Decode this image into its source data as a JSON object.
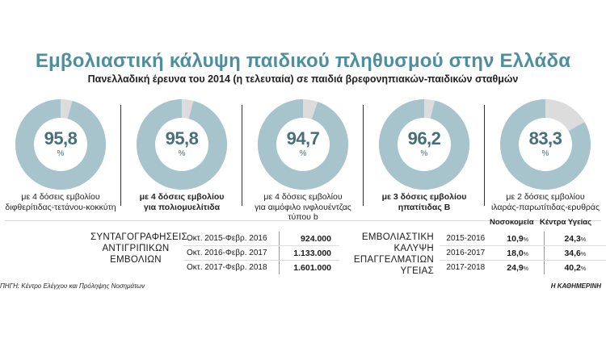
{
  "title": "Εμβολιαστική κάλυψη παιδικού πληθυσμού στην Ελλάδα",
  "subtitle": "Πανελλαδική έρευνα του 2014 (η τελευταία) σε παιδιά βρεφονηπιακών-παιδικών σταθμών",
  "colors": {
    "filled": "#a7c3cb",
    "empty": "#dcdcdc",
    "title": "#4f8f9c"
  },
  "chart_data": [
    {
      "type": "pie",
      "unit": "%",
      "items": [
        {
          "label": "95,8",
          "value": 95.8,
          "caption_lines": [
            "με 4 δόσεις εμβολίου",
            "διφθερίτιδας-τετάνου-κοκκύτη"
          ],
          "bold": false
        },
        {
          "label": "95,8",
          "value": 95.8,
          "caption_lines": [
            "με 4 δόσεις εμβολίου",
            "για πολιομυελίτιδα"
          ],
          "bold": true
        },
        {
          "label": "94,7",
          "value": 94.7,
          "caption_lines": [
            "με 4 δόσεις εμβολίου",
            "για αιμόφιλο ινφλουέντζας τύπου b"
          ],
          "bold": false
        },
        {
          "label": "96,2",
          "value": 96.2,
          "caption_lines": [
            "με 3 δόσεις εμβολίου",
            "ηπατίτιδας Β"
          ],
          "bold": true
        },
        {
          "label": "83,3",
          "value": 83.3,
          "caption_lines": [
            "με 2 δόσεις εμβολίου",
            "ιλαράς-παρωτίτιδας-ερυθράς"
          ],
          "bold": false
        }
      ]
    },
    {
      "type": "table",
      "title_lines": [
        "ΣΥΝΤΑΓΟΓΡΑΦΗΣΕΙΣ",
        "ΑΝΤΙΓΡΙΠΙΚΩΝ",
        "ΕΜΒΟΛΙΩΝ"
      ],
      "rows": [
        {
          "period": "Οκτ. 2015-Φεβρ. 2016",
          "value": "924.000"
        },
        {
          "period": "Οκτ. 2016-Φεβρ. 2017",
          "value": "1.133.000"
        },
        {
          "period": "Οκτ. 2017-Φεβρ. 2018",
          "value": "1.601.000"
        }
      ]
    },
    {
      "type": "table",
      "title_lines": [
        "ΕΜΒΟΛΙΑΣΤΙΚΗ",
        "ΚΑΛΥΨΗ ΕΠΑΓΓΕΛΜΑΤΙΩΝ",
        "ΥΓΕΙΑΣ"
      ],
      "columns": [
        "Νοσοκομεία",
        "Κέντρα Υγείας"
      ],
      "rows": [
        {
          "year": "2015-2016",
          "hospitals": "10,9",
          "health_centers": "24,3"
        },
        {
          "year": "2016-2017",
          "hospitals": "18,0",
          "health_centers": "34,6"
        },
        {
          "year": "2017-2018",
          "hospitals": "24,9",
          "health_centers": "40,2"
        }
      ],
      "unit": "%"
    }
  ],
  "source": "ΠΗΓΗ: Κέντρο Ελέγχου και Πρόληψης Νοσημάτων",
  "credit": "Η ΚΑΘΗΜΕΡΙΝΗ"
}
